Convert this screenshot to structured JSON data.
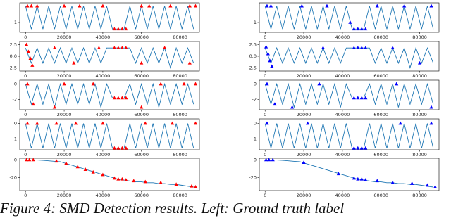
{
  "chart_data": [
    {
      "type": "line",
      "xlim": [
        -3000,
        90000
      ],
      "xticks": [
        0,
        20000,
        40000,
        60000,
        80000
      ],
      "ylim": [
        0.4,
        2.2
      ],
      "yticks": [
        1
      ],
      "x": [
        0,
        3000,
        6000,
        9000,
        12000,
        15000,
        18000,
        21000,
        24000,
        27000,
        30000,
        33000,
        36000,
        39000,
        42000,
        45000,
        48000,
        51000,
        54000,
        57000,
        60000,
        63000,
        66000,
        69000,
        72000,
        75000,
        78000,
        81000,
        84000,
        87000
      ],
      "line": {
        "color": "#1f77b4",
        "values": [
          2.0,
          0.6,
          2.0,
          0.6,
          2.0,
          0.6,
          2.0,
          0.6,
          2.0,
          0.6,
          2.0,
          0.6,
          2.0,
          0.6,
          2.0,
          0.6,
          0.6,
          0.6,
          2.0,
          0.6,
          2.0,
          0.6,
          2.0,
          0.6,
          2.0,
          0.6,
          2.0,
          0.6,
          2.0,
          0.6
        ]
      },
      "markers": {
        "color": "red",
        "x": [
          1000,
          3000,
          6000,
          20000,
          28000,
          40000,
          46000,
          48000,
          50000,
          52000,
          60000,
          64000,
          75000,
          85000,
          88000
        ],
        "values": [
          2.0,
          2.0,
          2.0,
          2.0,
          2.0,
          2.0,
          0.6,
          0.6,
          0.6,
          0.6,
          2.0,
          2.0,
          2.0,
          2.0,
          2.0
        ]
      }
    },
    {
      "type": "line",
      "xlim": [
        -3000,
        90000
      ],
      "xticks": [
        0,
        20000,
        40000,
        60000,
        80000
      ],
      "ylim": [
        0.4,
        2.2
      ],
      "yticks": [
        1
      ],
      "x": [
        0,
        3000,
        6000,
        9000,
        12000,
        15000,
        18000,
        21000,
        24000,
        27000,
        30000,
        33000,
        36000,
        39000,
        42000,
        45000,
        48000,
        51000,
        54000,
        57000,
        60000,
        63000,
        66000,
        69000,
        72000,
        75000,
        78000,
        81000,
        84000,
        87000
      ],
      "line": {
        "color": "#1f77b4",
        "values": [
          2.0,
          0.6,
          2.0,
          0.6,
          2.0,
          0.6,
          2.0,
          0.6,
          2.0,
          0.6,
          2.0,
          0.6,
          2.0,
          0.6,
          2.0,
          0.6,
          0.6,
          0.6,
          2.0,
          0.6,
          2.0,
          0.6,
          2.0,
          0.6,
          2.0,
          0.6,
          2.0,
          0.6,
          2.0,
          0.6
        ]
      },
      "markers": {
        "color": "blue",
        "x": [
          1000,
          3000,
          19000,
          32000,
          44000,
          46000,
          48000,
          50000,
          52000,
          58000,
          72000,
          86000
        ],
        "values": [
          2.0,
          2.0,
          2.0,
          2.0,
          1.0,
          0.6,
          0.6,
          0.6,
          0.6,
          2.0,
          2.0,
          2.0
        ]
      }
    },
    {
      "type": "line",
      "xlim": [
        -3000,
        90000
      ],
      "xticks": [
        0,
        20000,
        40000,
        60000,
        80000
      ],
      "ylim": [
        -3.2,
        3.2
      ],
      "yticks": [
        {
          "value": -2.5,
          "label": "-2.5"
        },
        {
          "value": 0,
          "label": "0.0"
        },
        {
          "value": 2.5,
          "label": "2.5"
        }
      ],
      "x": [
        0,
        3000,
        6000,
        9000,
        12000,
        15000,
        18000,
        21000,
        24000,
        27000,
        30000,
        33000,
        36000,
        39000,
        42000,
        45000,
        48000,
        51000,
        54000,
        57000,
        60000,
        63000,
        66000,
        69000,
        72000,
        75000,
        78000,
        81000,
        84000,
        87000
      ],
      "line": {
        "color": "#1f77b4",
        "values": [
          1.8,
          -1.5,
          1.8,
          -1.5,
          1.8,
          -1.5,
          1.8,
          -1.5,
          1.8,
          -1.5,
          1.8,
          -1.5,
          1.8,
          -1.5,
          1.8,
          1.8,
          1.8,
          1.8,
          1.8,
          -1.5,
          1.8,
          -1.5,
          1.8,
          -1.5,
          1.8,
          -2.5,
          1.8,
          -1.5,
          1.8,
          -1.5
        ]
      },
      "markers": {
        "color": "red",
        "x": [
          500,
          1500,
          2500,
          3500,
          15000,
          25000,
          38000,
          46000,
          48000,
          50000,
          52000,
          60000,
          72000,
          85000
        ],
        "values": [
          2.5,
          1.0,
          -0.5,
          -2.0,
          1.8,
          -1.5,
          1.8,
          1.8,
          1.8,
          1.8,
          1.8,
          -1.5,
          1.8,
          -1.5
        ]
      }
    },
    {
      "type": "line",
      "xlim": [
        -3000,
        90000
      ],
      "xticks": [
        0,
        20000,
        40000,
        60000,
        80000
      ],
      "ylim": [
        -3.2,
        3.2
      ],
      "yticks": [
        {
          "value": -2.5,
          "label": "-2.5"
        },
        {
          "value": 0,
          "label": "0.0"
        },
        {
          "value": 2.5,
          "label": "2.5"
        }
      ],
      "x": [
        0,
        3000,
        6000,
        9000,
        12000,
        15000,
        18000,
        21000,
        24000,
        27000,
        30000,
        33000,
        36000,
        39000,
        42000,
        45000,
        48000,
        51000,
        54000,
        57000,
        60000,
        63000,
        66000,
        69000,
        72000,
        75000,
        78000,
        81000,
        84000,
        87000
      ],
      "line": {
        "color": "#1f77b4",
        "values": [
          1.8,
          -1.5,
          1.8,
          -1.5,
          1.8,
          -1.5,
          1.8,
          -1.5,
          1.8,
          -1.5,
          1.8,
          -1.5,
          1.8,
          -1.5,
          1.8,
          1.8,
          1.8,
          1.8,
          1.8,
          -1.5,
          1.8,
          -1.5,
          1.8,
          -1.5,
          1.8,
          -2.5,
          1.8,
          -1.5,
          1.8,
          -1.5
        ]
      },
      "markers": {
        "color": "blue",
        "x": [
          500,
          1500,
          2500,
          3500,
          30000,
          46000,
          48000,
          50000,
          52000,
          66000,
          80000
        ],
        "values": [
          2.0,
          0.5,
          -1.0,
          -2.2,
          1.8,
          1.8,
          1.8,
          1.8,
          1.8,
          1.8,
          -1.5
        ]
      }
    },
    {
      "type": "line",
      "xlim": [
        -3000,
        90000
      ],
      "xticks": [
        0,
        20000,
        40000,
        60000,
        80000
      ],
      "ylim": [
        -3.3,
        0.5
      ],
      "yticks": [
        -2,
        0
      ],
      "x": [
        0,
        3000,
        6000,
        9000,
        12000,
        15000,
        18000,
        21000,
        24000,
        27000,
        30000,
        33000,
        36000,
        39000,
        42000,
        45000,
        48000,
        51000,
        54000,
        57000,
        60000,
        63000,
        66000,
        69000,
        72000,
        75000,
        78000,
        81000,
        84000,
        87000
      ],
      "line": {
        "color": "#1f77b4",
        "values": [
          0,
          -2.6,
          0,
          -2.6,
          0,
          -3.0,
          0,
          -2.6,
          0,
          -2.6,
          0,
          -2.6,
          0,
          -3.0,
          0,
          -1.8,
          -1.8,
          -1.8,
          0,
          -2.6,
          0,
          -2.6,
          0,
          -3.0,
          0,
          -2.6,
          0,
          -2.6,
          0,
          -2.6
        ]
      },
      "markers": {
        "color": "red",
        "x": [
          1000,
          4000,
          15000,
          20000,
          35000,
          46000,
          48000,
          50000,
          52000,
          60000,
          70000,
          82000,
          88000
        ],
        "values": [
          0,
          -2.6,
          -3.0,
          0,
          0,
          -1.8,
          -1.8,
          -1.8,
          -1.8,
          -3.0,
          0,
          0,
          0
        ]
      }
    },
    {
      "type": "line",
      "xlim": [
        -3000,
        90000
      ],
      "xticks": [
        0,
        20000,
        40000,
        60000,
        80000
      ],
      "ylim": [
        -3.3,
        0.5
      ],
      "yticks": [
        -2,
        0
      ],
      "x": [
        0,
        3000,
        6000,
        9000,
        12000,
        15000,
        18000,
        21000,
        24000,
        27000,
        30000,
        33000,
        36000,
        39000,
        42000,
        45000,
        48000,
        51000,
        54000,
        57000,
        60000,
        63000,
        66000,
        69000,
        72000,
        75000,
        78000,
        81000,
        84000,
        87000
      ],
      "line": {
        "color": "#1f77b4",
        "values": [
          0,
          -2.6,
          0,
          -2.6,
          0,
          -3.0,
          0,
          -2.6,
          0,
          -2.6,
          0,
          -2.6,
          0,
          -3.0,
          0,
          -1.8,
          -1.8,
          -1.8,
          0,
          -2.6,
          0,
          -2.6,
          0,
          -3.0,
          0,
          -2.6,
          0,
          -2.6,
          0,
          -2.6
        ]
      },
      "markers": {
        "color": "blue",
        "x": [
          1000,
          5000,
          14000,
          28000,
          46000,
          48000,
          50000,
          52000,
          68000,
          86000
        ],
        "values": [
          0,
          -2.6,
          -3.0,
          0,
          -1.8,
          -1.8,
          -1.8,
          -1.8,
          0,
          -3.0
        ]
      }
    },
    {
      "type": "line",
      "xlim": [
        -3000,
        90000
      ],
      "xticks": [
        0,
        20000,
        40000,
        60000,
        80000
      ],
      "ylim": [
        -1.7,
        0.3
      ],
      "yticks": [
        -1,
        0
      ],
      "x": [
        0,
        3000,
        6000,
        9000,
        12000,
        15000,
        18000,
        21000,
        24000,
        27000,
        30000,
        33000,
        36000,
        39000,
        42000,
        45000,
        48000,
        51000,
        54000,
        57000,
        60000,
        63000,
        66000,
        69000,
        72000,
        75000,
        78000,
        81000,
        84000,
        87000
      ],
      "line": {
        "color": "#1f77b4",
        "values": [
          0,
          -1.6,
          0,
          -1.6,
          0,
          -1.6,
          0,
          -1.6,
          0,
          -1.6,
          0,
          -1.6,
          0,
          -1.6,
          0,
          -1.6,
          -1.6,
          -1.6,
          0,
          -1.6,
          0,
          -1.6,
          0,
          -1.6,
          0,
          -1.6,
          0,
          -1.6,
          0,
          -1.6
        ]
      },
      "markers": {
        "color": "red",
        "x": [
          1000,
          6000,
          16000,
          26000,
          40000,
          46000,
          48000,
          50000,
          52000,
          62000,
          76000,
          88000
        ],
        "values": [
          0,
          0,
          0,
          0,
          0,
          -1.6,
          -1.6,
          -1.6,
          -1.6,
          0,
          0,
          0
        ]
      }
    },
    {
      "type": "line",
      "xlim": [
        -3000,
        90000
      ],
      "xticks": [
        0,
        20000,
        40000,
        60000,
        80000
      ],
      "ylim": [
        -1.7,
        0.3
      ],
      "yticks": [
        -1,
        0
      ],
      "x": [
        0,
        3000,
        6000,
        9000,
        12000,
        15000,
        18000,
        21000,
        24000,
        27000,
        30000,
        33000,
        36000,
        39000,
        42000,
        45000,
        48000,
        51000,
        54000,
        57000,
        60000,
        63000,
        66000,
        69000,
        72000,
        75000,
        78000,
        81000,
        84000,
        87000
      ],
      "line": {
        "color": "#1f77b4",
        "values": [
          0,
          -1.6,
          0,
          -1.6,
          0,
          -1.6,
          0,
          -1.6,
          0,
          -1.6,
          0,
          -1.6,
          0,
          -1.6,
          0,
          -1.6,
          -1.6,
          -1.6,
          0,
          -1.6,
          0,
          -1.6,
          0,
          -1.6,
          0,
          -1.6,
          0,
          -1.6,
          0,
          -1.6
        ]
      },
      "markers": {
        "color": "blue",
        "x": [
          1000,
          22000,
          46000,
          48000,
          50000,
          52000,
          70000,
          86000
        ],
        "values": [
          0,
          0,
          -1.6,
          -1.6,
          -1.6,
          -1.6,
          0,
          0
        ]
      }
    },
    {
      "type": "line",
      "xlim": [
        -3000,
        90000
      ],
      "xticks": [
        0,
        20000,
        40000,
        60000,
        80000
      ],
      "ylim": [
        -35,
        2
      ],
      "yticks": [
        -20,
        0
      ],
      "x": [
        0,
        3000,
        6000,
        9000,
        12000,
        15000,
        18000,
        21000,
        24000,
        27000,
        30000,
        33000,
        36000,
        39000,
        42000,
        45000,
        48000,
        51000,
        54000,
        57000,
        60000,
        63000,
        66000,
        69000,
        72000,
        75000,
        78000,
        81000,
        84000,
        87000
      ],
      "line": {
        "color": "#1f77b4",
        "values": [
          0,
          0,
          0,
          -0.5,
          -1,
          -1.5,
          -2,
          -4,
          -6,
          -8,
          -10,
          -12,
          -14,
          -16,
          -18,
          -20,
          -22,
          -23,
          -24,
          -25,
          -25,
          -26,
          -26,
          -27,
          -27,
          -28,
          -28,
          -29,
          -30,
          -31
        ]
      },
      "markers": {
        "color": "red",
        "x": [
          500,
          2000,
          4000,
          16000,
          21000,
          27000,
          31000,
          35000,
          40000,
          46000,
          48000,
          50000,
          52000,
          56000,
          62000,
          70000,
          78000,
          86000,
          88000
        ],
        "values": [
          0,
          0,
          0,
          -1.5,
          -4,
          -8,
          -11,
          -14,
          -17,
          -21,
          -22,
          -22,
          -23,
          -24,
          -25,
          -26,
          -28,
          -30,
          -31
        ]
      }
    },
    {
      "type": "line",
      "xlim": [
        -3000,
        90000
      ],
      "xticks": [
        0,
        20000,
        40000,
        60000,
        80000
      ],
      "ylim": [
        -35,
        2
      ],
      "yticks": [
        -20,
        0
      ],
      "x": [
        0,
        3000,
        6000,
        9000,
        12000,
        15000,
        18000,
        21000,
        24000,
        27000,
        30000,
        33000,
        36000,
        39000,
        42000,
        45000,
        48000,
        51000,
        54000,
        57000,
        60000,
        63000,
        66000,
        69000,
        72000,
        75000,
        78000,
        81000,
        84000,
        87000
      ],
      "line": {
        "color": "#1f77b4",
        "values": [
          0,
          0,
          0,
          -0.5,
          -1,
          -1.5,
          -2,
          -4,
          -6,
          -8,
          -10,
          -12,
          -14,
          -16,
          -18,
          -20,
          -22,
          -23,
          -24,
          -25,
          -25,
          -26,
          -26,
          -27,
          -27,
          -28,
          -28,
          -29,
          -30,
          -31
        ]
      },
      "markers": {
        "color": "blue",
        "x": [
          500,
          2000,
          4000,
          20000,
          38000,
          46000,
          48000,
          50000,
          52000,
          58000,
          66000,
          76000,
          84000,
          88000
        ],
        "values": [
          0,
          0,
          0,
          -3,
          -16,
          -21,
          -22,
          -22,
          -23,
          -24,
          -26,
          -27,
          -29,
          -31
        ]
      }
    }
  ],
  "caption": "Figure 4: SMD Detection results. Left: Ground truth label"
}
